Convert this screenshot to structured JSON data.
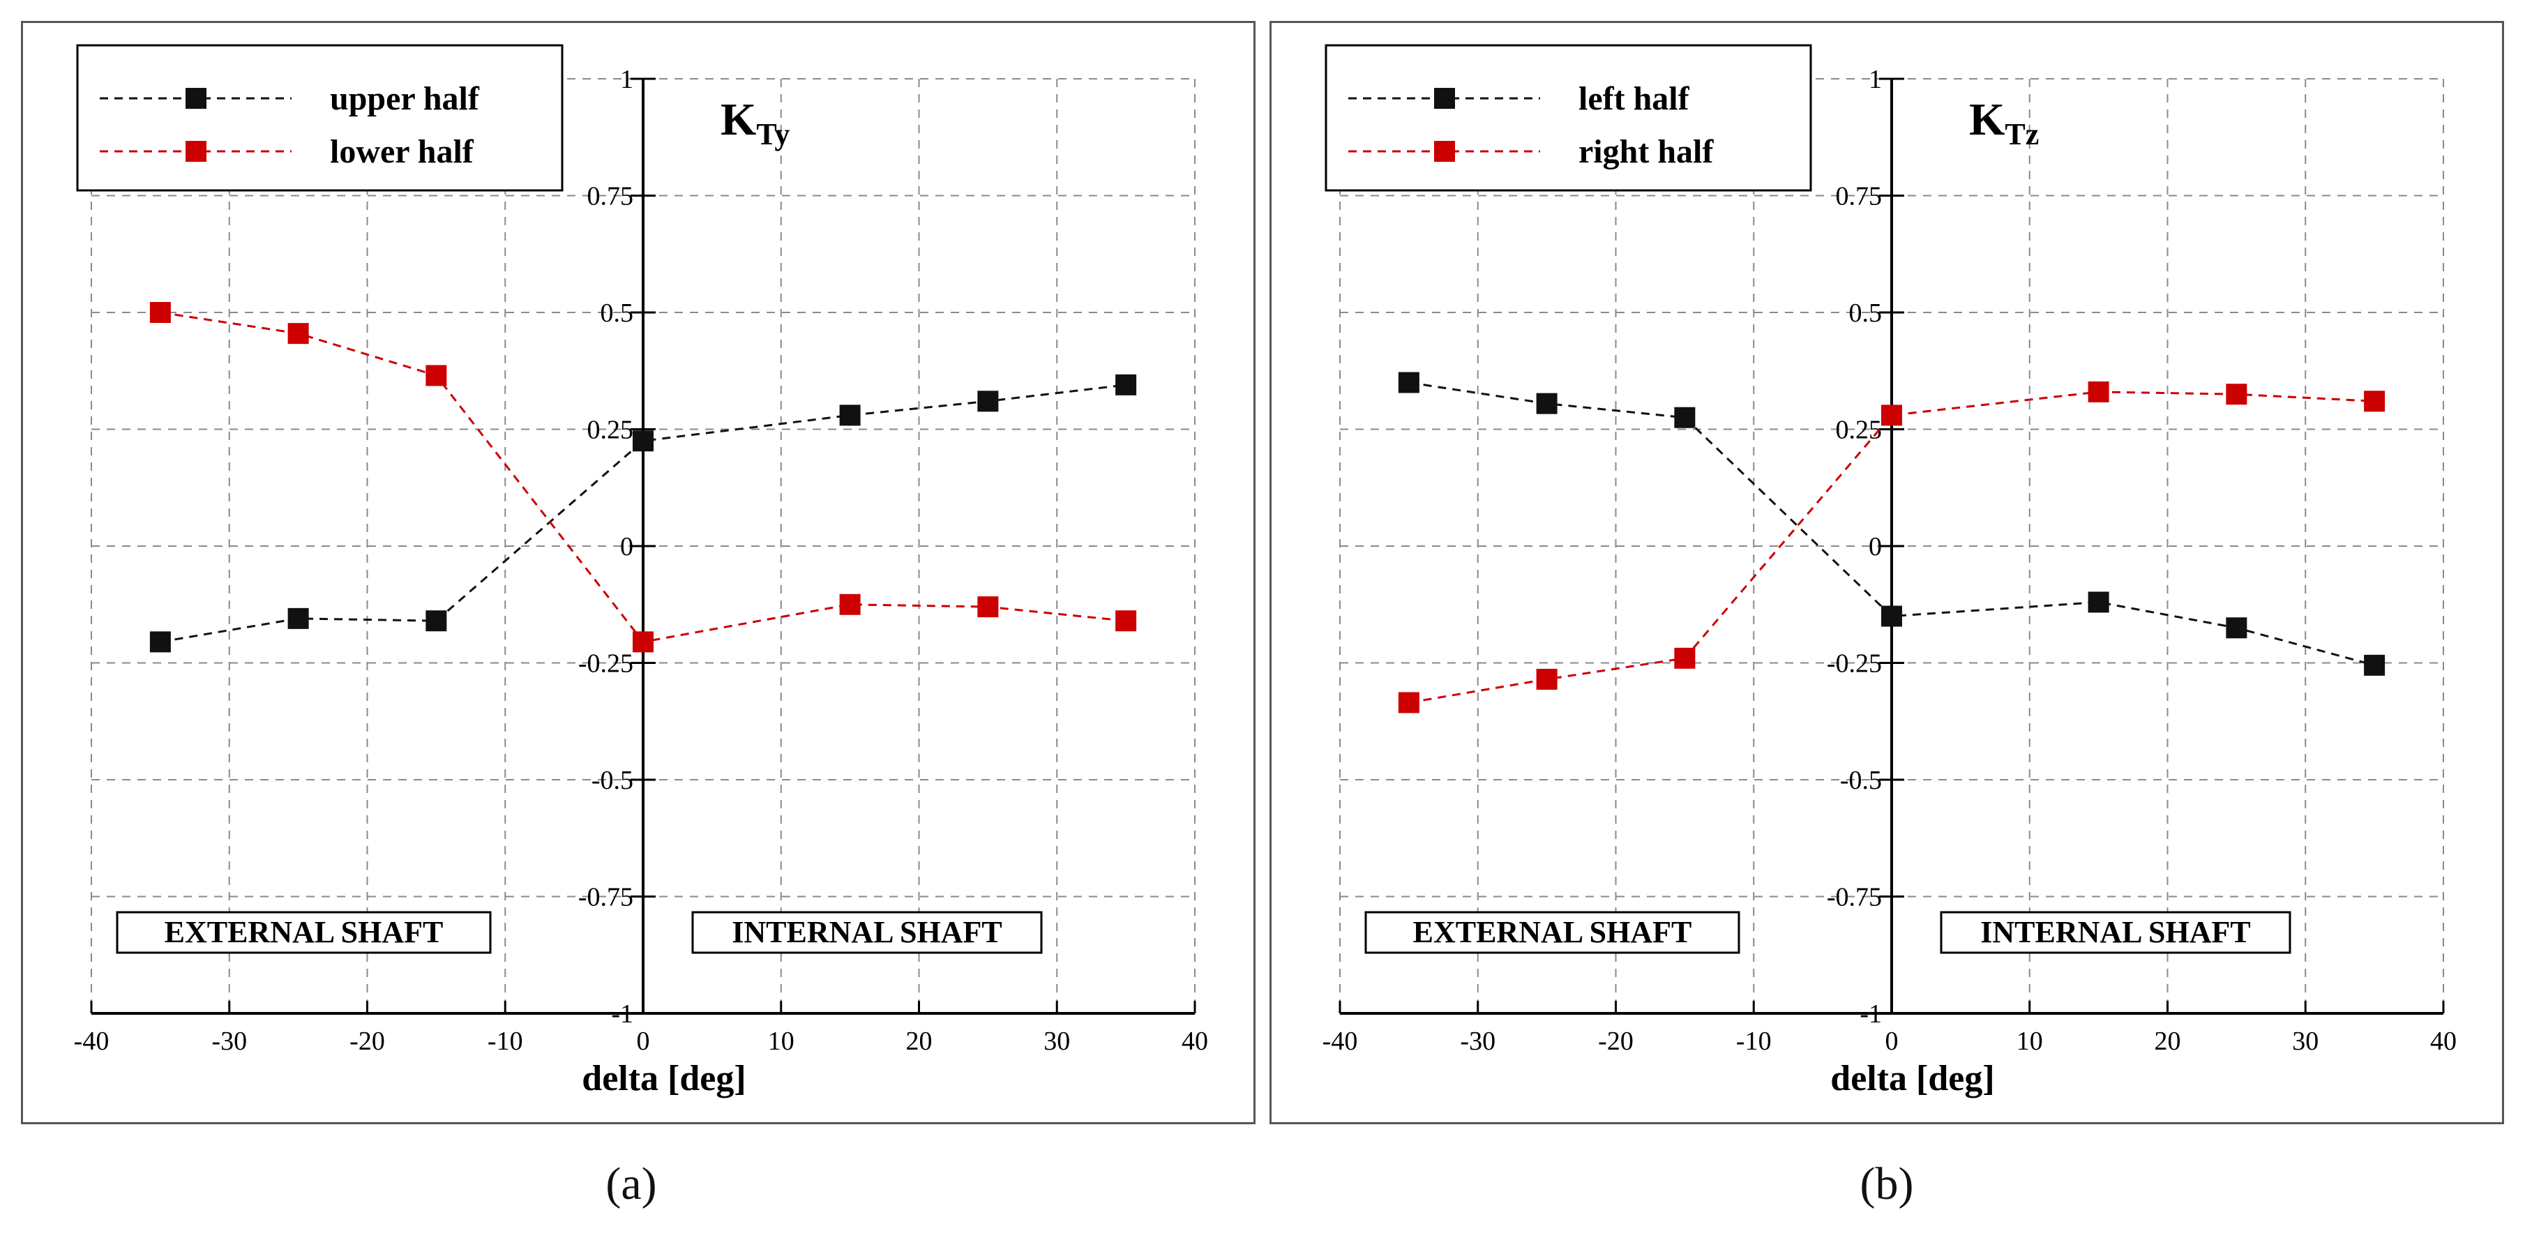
{
  "charts": {
    "a": {
      "caption": "(a)",
      "annotation": {
        "main": "K",
        "sub": "Ty"
      },
      "legend": [
        "upper half",
        "lower half"
      ]
    },
    "b": {
      "caption": "(b)",
      "annotation": {
        "main": "K",
        "sub": "Tz"
      },
      "legend": [
        "left half",
        "right half"
      ]
    }
  },
  "chart_data": [
    {
      "type": "line",
      "title": "K_Ty",
      "xlabel": "delta [deg]",
      "ylabel": "",
      "xlim": [
        -40,
        40
      ],
      "ylim": [
        -1,
        1
      ],
      "xticks": [
        -40,
        -30,
        -20,
        -10,
        0,
        10,
        20,
        30,
        40
      ],
      "yticks": [
        -1,
        -0.75,
        -0.5,
        -0.25,
        0,
        0.25,
        0.5,
        0.75,
        1
      ],
      "xtick_labels": [
        "-40",
        "-30",
        "-20",
        "-10",
        "0",
        "10",
        "20",
        "30",
        "40"
      ],
      "ytick_labels": [
        "-1",
        "-0.75",
        "-0.5",
        "-0.25",
        "0",
        "0.25",
        "0.5",
        "0.75",
        "1"
      ],
      "grid": true,
      "legend_position": "top-left",
      "region_labels": [
        "EXTERNAL SHAFT",
        "INTERNAL SHAFT"
      ],
      "x": [
        -35,
        -25,
        -15,
        0,
        15,
        25,
        35
      ],
      "series": [
        {
          "name": "upper half",
          "color": "#111111",
          "values": [
            -0.205,
            -0.155,
            -0.16,
            0.225,
            0.28,
            0.31,
            0.345
          ]
        },
        {
          "name": "lower half",
          "color": "#cc0000",
          "values": [
            0.5,
            0.455,
            0.365,
            -0.205,
            -0.125,
            -0.13,
            -0.16
          ]
        }
      ]
    },
    {
      "type": "line",
      "title": "K_Tz",
      "xlabel": "delta [deg]",
      "ylabel": "",
      "xlim": [
        -40,
        40
      ],
      "ylim": [
        -1,
        1
      ],
      "xticks": [
        -40,
        -30,
        -20,
        -10,
        0,
        10,
        20,
        30,
        40
      ],
      "yticks": [
        -1,
        -0.75,
        -0.5,
        -0.25,
        0,
        0.25,
        0.5,
        0.75,
        1
      ],
      "xtick_labels": [
        "-40",
        "-30",
        "-20",
        "-10",
        "0",
        "10",
        "20",
        "30",
        "40"
      ],
      "ytick_labels": [
        "-1",
        "-0.75",
        "-0.5",
        "-0.25",
        "0",
        "0.25",
        "0.5",
        "0.75",
        "1"
      ],
      "grid": true,
      "legend_position": "top-left",
      "region_labels": [
        "EXTERNAL SHAFT",
        "INTERNAL SHAFT"
      ],
      "x": [
        -35,
        -25,
        -15,
        0,
        15,
        25,
        35
      ],
      "series": [
        {
          "name": "left half",
          "color": "#111111",
          "values": [
            0.35,
            0.305,
            0.275,
            -0.15,
            -0.12,
            -0.175,
            -0.255
          ]
        },
        {
          "name": "right half",
          "color": "#cc0000",
          "values": [
            -0.335,
            -0.285,
            -0.24,
            0.28,
            0.33,
            0.325,
            0.31
          ]
        }
      ]
    }
  ]
}
